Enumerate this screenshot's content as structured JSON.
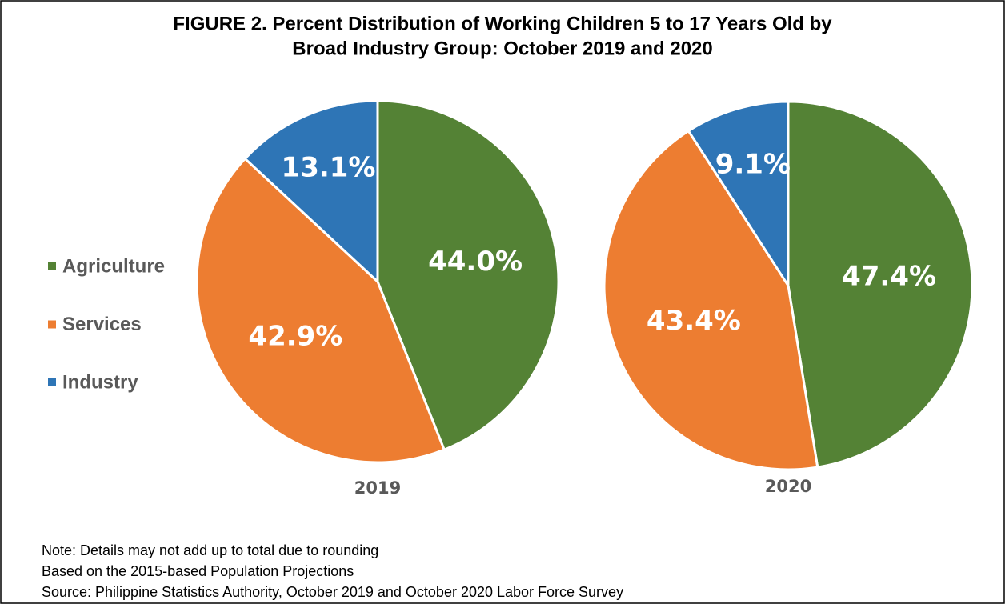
{
  "title": [
    "FIGURE 2. Percent Distribution of Working Children 5 to 17 Years Old by",
    "Broad Industry Group: October 2019 and 2020"
  ],
  "legend": {
    "categories": [
      "Agriculture",
      "Services",
      "Industry"
    ],
    "colors": [
      "#548235",
      "#ed7d31",
      "#2e75b6"
    ]
  },
  "chart_data": [
    {
      "type": "pie",
      "label": "2019",
      "values": [
        44.0,
        42.9,
        13.1
      ],
      "value_labels": [
        "44.0%",
        "42.9%",
        "13.1%"
      ]
    },
    {
      "type": "pie",
      "label": "2020",
      "values": [
        47.4,
        43.4,
        9.1
      ],
      "value_labels": [
        "47.4%",
        "43.4%",
        "9.1%"
      ]
    }
  ],
  "notes": [
    "Note: Details may not add up to total due to rounding",
    "Based on the 2015-based Population Projections",
    "Source: Philippine Statistics Authority, October 2019 and October 2020 Labor Force Survey"
  ]
}
